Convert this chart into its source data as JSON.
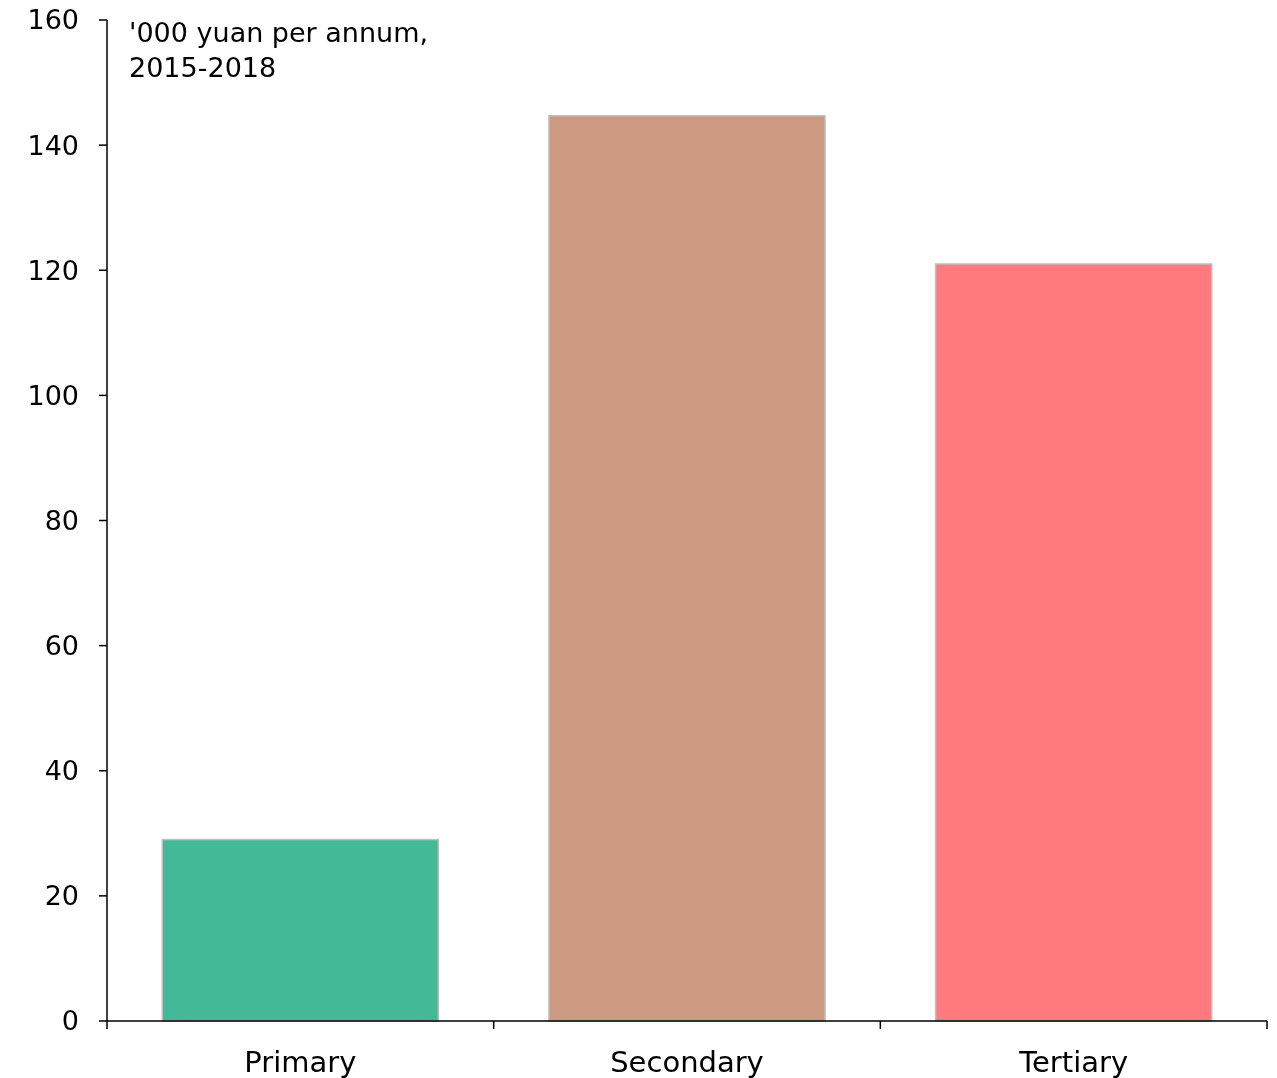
{
  "chart_data": {
    "type": "bar",
    "categories": [
      "Primary",
      "Secondary",
      "Tertiary"
    ],
    "values": [
      29,
      144.7,
      121
    ],
    "colors": [
      "#43b998",
      "#cc9a82",
      "#ff7b80"
    ],
    "ylim": [
      0,
      160
    ],
    "yticks": [
      0,
      20,
      40,
      60,
      80,
      100,
      120,
      140,
      160
    ],
    "annotations": [
      "'000 yuan per annum,\n2015-2018"
    ]
  }
}
